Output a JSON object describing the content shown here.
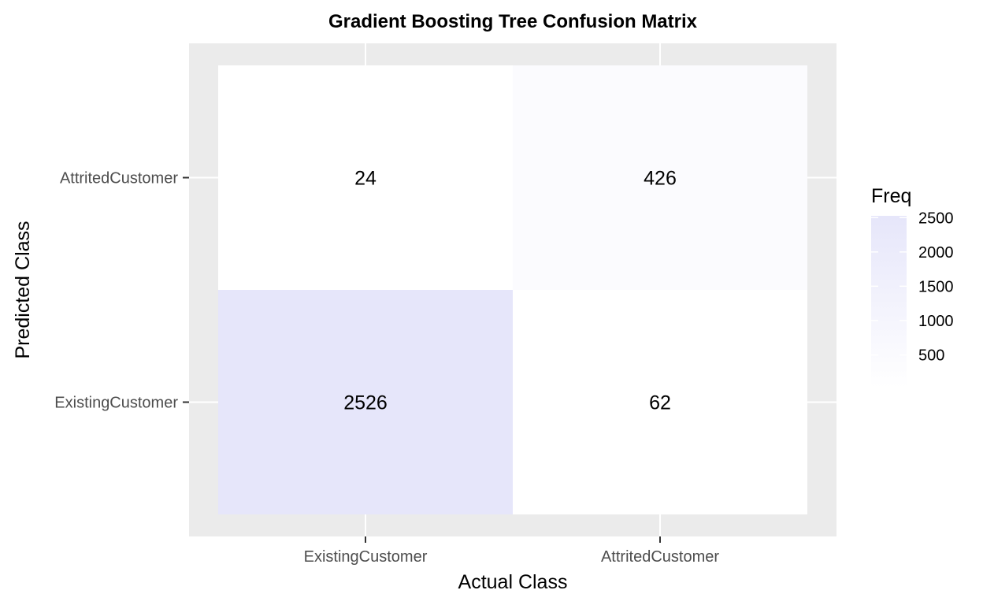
{
  "chart_data": {
    "type": "heatmap",
    "title": "Gradient Boosting Tree Confusion Matrix",
    "xlabel": "Actual Class",
    "ylabel": "Predicted Class",
    "x_categories": [
      "ExistingCustomer",
      "AttritedCustomer"
    ],
    "y_categories": [
      "AttritedCustomer",
      "ExistingCustomer"
    ],
    "cells": [
      {
        "x": "ExistingCustomer",
        "y": "AttritedCustomer",
        "value": 24,
        "label": "24"
      },
      {
        "x": "AttritedCustomer",
        "y": "AttritedCustomer",
        "value": 426,
        "label": "426"
      },
      {
        "x": "ExistingCustomer",
        "y": "ExistingCustomer",
        "value": 2526,
        "label": "2526"
      },
      {
        "x": "AttritedCustomer",
        "y": "ExistingCustomer",
        "value": 62,
        "label": "62"
      }
    ],
    "legend": {
      "title": "Freq",
      "ticks": [
        500,
        1000,
        1500,
        2000,
        2500
      ],
      "tick_labels": [
        "500",
        "1000",
        "1500",
        "2000",
        "2500"
      ],
      "range": [
        24,
        2526
      ],
      "placement": "right"
    },
    "colors": {
      "low": "#ffffff",
      "high": "#e6e6fa",
      "panel_background": "#ebebeb",
      "grid": "#ffffff"
    },
    "grid": true
  }
}
